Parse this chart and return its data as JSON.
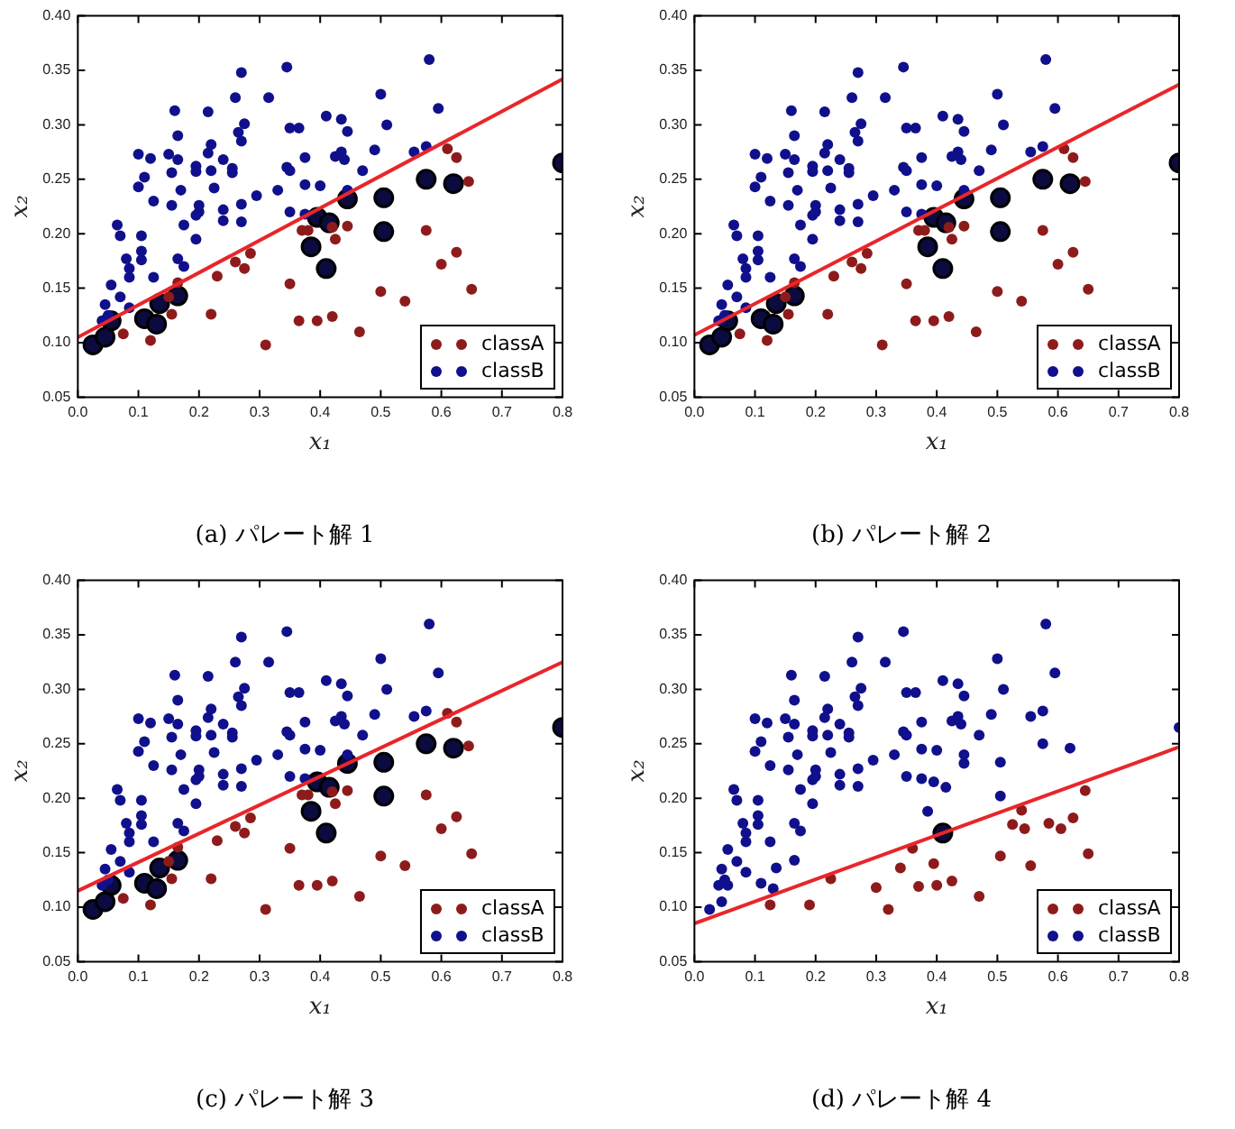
{
  "chart_data": [
    {
      "type": "scatter",
      "title": "(a) パレート解 1",
      "xlabel": "x₁",
      "ylabel": "x₂",
      "xlim": [
        0,
        0.8
      ],
      "ylim": [
        0.05,
        0.4
      ],
      "xticks": [
        {
          "value": 0,
          "label": "0.0"
        },
        {
          "value": 0.1,
          "label": "0.1"
        },
        {
          "value": 0.2,
          "label": "0.2"
        },
        {
          "value": 0.3,
          "label": "0.3"
        },
        {
          "value": 0.4,
          "label": "0.4"
        },
        {
          "value": 0.5,
          "label": "0.5"
        },
        {
          "value": 0.6,
          "label": "0.6"
        },
        {
          "value": 0.7,
          "label": "0.7"
        },
        {
          "value": 0.8,
          "label": "0.8"
        }
      ],
      "yticks": [
        {
          "value": 0.05,
          "label": "0.05"
        },
        {
          "value": 0.1,
          "label": "0.10"
        },
        {
          "value": 0.15,
          "label": "0.15"
        },
        {
          "value": 0.2,
          "label": "0.20"
        },
        {
          "value": 0.25,
          "label": "0.25"
        },
        {
          "value": 0.3,
          "label": "0.30"
        },
        {
          "value": 0.35,
          "label": "0.35"
        },
        {
          "value": 0.4,
          "label": "0.40"
        }
      ],
      "legend": "bottom right",
      "marker": "circle",
      "series": [
        {
          "name": "classA",
          "color": "#8e1b1b",
          "x": [
            0.075,
            0.12,
            0.15,
            0.155,
            0.165,
            0.22,
            0.23,
            0.26,
            0.275,
            0.285,
            0.31,
            0.35,
            0.365,
            0.37,
            0.38,
            0.395,
            0.42,
            0.42,
            0.425,
            0.445,
            0.465,
            0.5,
            0.54,
            0.575,
            0.6,
            0.61,
            0.625,
            0.625,
            0.645,
            0.65
          ],
          "values": [
            0.108,
            0.102,
            0.142,
            0.126,
            0.155,
            0.126,
            0.161,
            0.174,
            0.168,
            0.182,
            0.098,
            0.154,
            0.12,
            0.203,
            0.203,
            0.12,
            0.206,
            0.124,
            0.195,
            0.207,
            0.11,
            0.147,
            0.138,
            0.203,
            0.172,
            0.278,
            0.27,
            0.183,
            0.248,
            0.149
          ]
        },
        {
          "name": "classB",
          "color": "#10108c",
          "x": [
            0.04,
            0.045,
            0.05,
            0.055,
            0.065,
            0.07,
            0.07,
            0.08,
            0.085,
            0.085,
            0.085,
            0.1,
            0.1,
            0.105,
            0.105,
            0.105,
            0.11,
            0.12,
            0.125,
            0.125,
            0.15,
            0.155,
            0.155,
            0.16,
            0.165,
            0.165,
            0.165,
            0.17,
            0.175,
            0.175,
            0.195,
            0.195,
            0.195,
            0.195,
            0.2,
            0.2,
            0.215,
            0.215,
            0.22,
            0.22,
            0.225,
            0.24,
            0.24,
            0.24,
            0.255,
            0.255,
            0.26,
            0.265,
            0.27,
            0.27,
            0.27,
            0.275,
            0.27,
            0.295,
            0.315,
            0.33,
            0.345,
            0.35,
            0.345,
            0.35,
            0.35,
            0.365,
            0.375,
            0.375,
            0.375,
            0.4,
            0.41,
            0.425,
            0.435,
            0.435,
            0.44,
            0.445,
            0.445,
            0.47,
            0.49,
            0.5,
            0.51,
            0.555,
            0.575,
            0.58,
            0.595
          ],
          "values": [
            0.12,
            0.135,
            0.125,
            0.153,
            0.208,
            0.198,
            0.142,
            0.177,
            0.168,
            0.16,
            0.132,
            0.273,
            0.243,
            0.198,
            0.184,
            0.176,
            0.252,
            0.269,
            0.23,
            0.16,
            0.273,
            0.256,
            0.226,
            0.313,
            0.29,
            0.268,
            0.177,
            0.24,
            0.17,
            0.208,
            0.262,
            0.257,
            0.217,
            0.195,
            0.226,
            0.22,
            0.312,
            0.274,
            0.282,
            0.258,
            0.242,
            0.268,
            0.222,
            0.212,
            0.26,
            0.256,
            0.325,
            0.293,
            0.285,
            0.227,
            0.348,
            0.301,
            0.211,
            0.235,
            0.325,
            0.24,
            0.261,
            0.258,
            0.353,
            0.297,
            0.22,
            0.297,
            0.27,
            0.245,
            0.218,
            0.244,
            0.308,
            0.271,
            0.305,
            0.275,
            0.268,
            0.294,
            0.24,
            0.258,
            0.277,
            0.328,
            0.3,
            0.275,
            0.28,
            0.36,
            0.315
          ]
        },
        {
          "color": "#0b0b40",
          "x": [
            0.025,
            0.045,
            0.055,
            0.11,
            0.13,
            0.135,
            0.165,
            0.385,
            0.395,
            0.41,
            0.415,
            0.445,
            0.505,
            0.505,
            0.575,
            0.62,
            0.8
          ],
          "values": [
            0.098,
            0.105,
            0.12,
            0.122,
            0.117,
            0.136,
            0.143,
            0.188,
            0.215,
            0.168,
            0.21,
            0.232,
            0.233,
            0.202,
            0.25,
            0.246,
            0.265
          ]
        },
        {
          "type": "line",
          "marker": "none",
          "color": "#e8262a",
          "x": [
            0,
            0.8
          ],
          "values": [
            0.105,
            0.342
          ]
        }
      ]
    },
    {
      "type": "scatter",
      "title": "(b) パレート解 2",
      "xlabel": "x₁",
      "ylabel": "x₂",
      "xlim": [
        0,
        0.8
      ],
      "ylim": [
        0.05,
        0.4
      ],
      "xticks": [
        {
          "value": 0,
          "label": "0.0"
        },
        {
          "value": 0.1,
          "label": "0.1"
        },
        {
          "value": 0.2,
          "label": "0.2"
        },
        {
          "value": 0.3,
          "label": "0.3"
        },
        {
          "value": 0.4,
          "label": "0.4"
        },
        {
          "value": 0.5,
          "label": "0.5"
        },
        {
          "value": 0.6,
          "label": "0.6"
        },
        {
          "value": 0.7,
          "label": "0.7"
        },
        {
          "value": 0.8,
          "label": "0.8"
        }
      ],
      "yticks": [
        {
          "value": 0.05,
          "label": "0.05"
        },
        {
          "value": 0.1,
          "label": "0.10"
        },
        {
          "value": 0.15,
          "label": "0.15"
        },
        {
          "value": 0.2,
          "label": "0.20"
        },
        {
          "value": 0.25,
          "label": "0.25"
        },
        {
          "value": 0.3,
          "label": "0.30"
        },
        {
          "value": 0.35,
          "label": "0.35"
        },
        {
          "value": 0.4,
          "label": "0.40"
        }
      ],
      "legend": "bottom right",
      "marker": "circle",
      "series": [
        {
          "name": "classA",
          "color": "#8e1b1b",
          "x": [
            0.075,
            0.12,
            0.15,
            0.155,
            0.165,
            0.22,
            0.23,
            0.26,
            0.275,
            0.285,
            0.31,
            0.35,
            0.365,
            0.37,
            0.38,
            0.395,
            0.42,
            0.42,
            0.425,
            0.445,
            0.465,
            0.5,
            0.54,
            0.575,
            0.6,
            0.61,
            0.625,
            0.625,
            0.645,
            0.65
          ],
          "values": [
            0.108,
            0.102,
            0.142,
            0.126,
            0.155,
            0.126,
            0.161,
            0.174,
            0.168,
            0.182,
            0.098,
            0.154,
            0.12,
            0.203,
            0.203,
            0.12,
            0.206,
            0.124,
            0.195,
            0.207,
            0.11,
            0.147,
            0.138,
            0.203,
            0.172,
            0.278,
            0.27,
            0.183,
            0.248,
            0.149
          ]
        },
        {
          "name": "classB",
          "color": "#10108c",
          "x": [
            0.04,
            0.045,
            0.05,
            0.055,
            0.065,
            0.07,
            0.07,
            0.08,
            0.085,
            0.085,
            0.085,
            0.1,
            0.1,
            0.105,
            0.105,
            0.105,
            0.11,
            0.12,
            0.125,
            0.125,
            0.15,
            0.155,
            0.155,
            0.16,
            0.165,
            0.165,
            0.165,
            0.17,
            0.175,
            0.175,
            0.195,
            0.195,
            0.195,
            0.195,
            0.2,
            0.2,
            0.215,
            0.215,
            0.22,
            0.22,
            0.225,
            0.24,
            0.24,
            0.24,
            0.255,
            0.255,
            0.26,
            0.265,
            0.27,
            0.27,
            0.27,
            0.275,
            0.27,
            0.295,
            0.315,
            0.33,
            0.345,
            0.35,
            0.345,
            0.35,
            0.35,
            0.365,
            0.375,
            0.375,
            0.375,
            0.4,
            0.41,
            0.425,
            0.435,
            0.435,
            0.44,
            0.445,
            0.445,
            0.47,
            0.49,
            0.5,
            0.51,
            0.555,
            0.575,
            0.58,
            0.595
          ],
          "values": [
            0.12,
            0.135,
            0.125,
            0.153,
            0.208,
            0.198,
            0.142,
            0.177,
            0.168,
            0.16,
            0.132,
            0.273,
            0.243,
            0.198,
            0.184,
            0.176,
            0.252,
            0.269,
            0.23,
            0.16,
            0.273,
            0.256,
            0.226,
            0.313,
            0.29,
            0.268,
            0.177,
            0.24,
            0.17,
            0.208,
            0.262,
            0.257,
            0.217,
            0.195,
            0.226,
            0.22,
            0.312,
            0.274,
            0.282,
            0.258,
            0.242,
            0.268,
            0.222,
            0.212,
            0.26,
            0.256,
            0.325,
            0.293,
            0.285,
            0.227,
            0.348,
            0.301,
            0.211,
            0.235,
            0.325,
            0.24,
            0.261,
            0.258,
            0.353,
            0.297,
            0.22,
            0.297,
            0.27,
            0.245,
            0.218,
            0.244,
            0.308,
            0.271,
            0.305,
            0.275,
            0.268,
            0.294,
            0.24,
            0.258,
            0.277,
            0.328,
            0.3,
            0.275,
            0.28,
            0.36,
            0.315
          ]
        },
        {
          "color": "#0b0b40",
          "x": [
            0.025,
            0.045,
            0.055,
            0.11,
            0.13,
            0.135,
            0.165,
            0.385,
            0.395,
            0.41,
            0.415,
            0.445,
            0.505,
            0.505,
            0.575,
            0.62,
            0.8
          ],
          "values": [
            0.098,
            0.105,
            0.12,
            0.122,
            0.117,
            0.136,
            0.143,
            0.188,
            0.215,
            0.168,
            0.21,
            0.232,
            0.233,
            0.202,
            0.25,
            0.246,
            0.265
          ]
        },
        {
          "type": "line",
          "marker": "none",
          "color": "#e8262a",
          "x": [
            0,
            0.8
          ],
          "values": [
            0.107,
            0.337
          ]
        }
      ]
    },
    {
      "type": "scatter",
      "title": "(c) パレート解 3",
      "xlabel": "x₁",
      "ylabel": "x₂",
      "xlim": [
        0,
        0.8
      ],
      "ylim": [
        0.05,
        0.4
      ],
      "xticks": [
        {
          "value": 0,
          "label": "0.0"
        },
        {
          "value": 0.1,
          "label": "0.1"
        },
        {
          "value": 0.2,
          "label": "0.2"
        },
        {
          "value": 0.3,
          "label": "0.3"
        },
        {
          "value": 0.4,
          "label": "0.4"
        },
        {
          "value": 0.5,
          "label": "0.5"
        },
        {
          "value": 0.6,
          "label": "0.6"
        },
        {
          "value": 0.7,
          "label": "0.7"
        },
        {
          "value": 0.8,
          "label": "0.8"
        }
      ],
      "yticks": [
        {
          "value": 0.05,
          "label": "0.05"
        },
        {
          "value": 0.1,
          "label": "0.10"
        },
        {
          "value": 0.15,
          "label": "0.15"
        },
        {
          "value": 0.2,
          "label": "0.20"
        },
        {
          "value": 0.25,
          "label": "0.25"
        },
        {
          "value": 0.3,
          "label": "0.30"
        },
        {
          "value": 0.35,
          "label": "0.35"
        },
        {
          "value": 0.4,
          "label": "0.40"
        }
      ],
      "legend": "bottom right",
      "marker": "circle",
      "series": [
        {
          "name": "classA",
          "color": "#8e1b1b",
          "x": [
            0.075,
            0.12,
            0.15,
            0.155,
            0.165,
            0.22,
            0.23,
            0.26,
            0.275,
            0.285,
            0.31,
            0.35,
            0.365,
            0.37,
            0.38,
            0.395,
            0.42,
            0.42,
            0.425,
            0.445,
            0.465,
            0.5,
            0.54,
            0.575,
            0.6,
            0.61,
            0.625,
            0.625,
            0.645,
            0.65
          ],
          "values": [
            0.108,
            0.102,
            0.142,
            0.126,
            0.155,
            0.126,
            0.161,
            0.174,
            0.168,
            0.182,
            0.098,
            0.154,
            0.12,
            0.203,
            0.203,
            0.12,
            0.206,
            0.124,
            0.195,
            0.207,
            0.11,
            0.147,
            0.138,
            0.203,
            0.172,
            0.278,
            0.27,
            0.183,
            0.248,
            0.149
          ]
        },
        {
          "name": "classB",
          "color": "#10108c",
          "x": [
            0.04,
            0.045,
            0.05,
            0.055,
            0.065,
            0.07,
            0.07,
            0.08,
            0.085,
            0.085,
            0.085,
            0.1,
            0.1,
            0.105,
            0.105,
            0.105,
            0.11,
            0.12,
            0.125,
            0.125,
            0.15,
            0.155,
            0.155,
            0.16,
            0.165,
            0.165,
            0.165,
            0.17,
            0.175,
            0.175,
            0.195,
            0.195,
            0.195,
            0.195,
            0.2,
            0.2,
            0.215,
            0.215,
            0.22,
            0.22,
            0.225,
            0.24,
            0.24,
            0.24,
            0.255,
            0.255,
            0.26,
            0.265,
            0.27,
            0.27,
            0.27,
            0.275,
            0.27,
            0.295,
            0.315,
            0.33,
            0.345,
            0.35,
            0.345,
            0.35,
            0.35,
            0.365,
            0.375,
            0.375,
            0.375,
            0.4,
            0.41,
            0.425,
            0.435,
            0.435,
            0.44,
            0.445,
            0.445,
            0.47,
            0.49,
            0.5,
            0.51,
            0.555,
            0.575,
            0.58,
            0.595
          ],
          "values": [
            0.12,
            0.135,
            0.125,
            0.153,
            0.208,
            0.198,
            0.142,
            0.177,
            0.168,
            0.16,
            0.132,
            0.273,
            0.243,
            0.198,
            0.184,
            0.176,
            0.252,
            0.269,
            0.23,
            0.16,
            0.273,
            0.256,
            0.226,
            0.313,
            0.29,
            0.268,
            0.177,
            0.24,
            0.17,
            0.208,
            0.262,
            0.257,
            0.217,
            0.195,
            0.226,
            0.22,
            0.312,
            0.274,
            0.282,
            0.258,
            0.242,
            0.268,
            0.222,
            0.212,
            0.26,
            0.256,
            0.325,
            0.293,
            0.285,
            0.227,
            0.348,
            0.301,
            0.211,
            0.235,
            0.325,
            0.24,
            0.261,
            0.258,
            0.353,
            0.297,
            0.22,
            0.297,
            0.27,
            0.245,
            0.218,
            0.244,
            0.308,
            0.271,
            0.305,
            0.275,
            0.268,
            0.294,
            0.24,
            0.258,
            0.277,
            0.328,
            0.3,
            0.275,
            0.28,
            0.36,
            0.315
          ]
        },
        {
          "color": "#0b0b40",
          "x": [
            0.025,
            0.045,
            0.055,
            0.11,
            0.13,
            0.135,
            0.165,
            0.385,
            0.395,
            0.41,
            0.415,
            0.445,
            0.505,
            0.505,
            0.575,
            0.62,
            0.8
          ],
          "values": [
            0.098,
            0.105,
            0.12,
            0.122,
            0.117,
            0.136,
            0.143,
            0.188,
            0.215,
            0.168,
            0.21,
            0.232,
            0.233,
            0.202,
            0.25,
            0.246,
            0.265
          ]
        },
        {
          "type": "line",
          "marker": "none",
          "color": "#e8262a",
          "x": [
            0,
            0.8
          ],
          "values": [
            0.115,
            0.325
          ]
        }
      ]
    },
    {
      "type": "scatter",
      "title": "(d) パレート解 4",
      "xlabel": "x₁",
      "ylabel": "x₂",
      "xlim": [
        0,
        0.8
      ],
      "ylim": [
        0.05,
        0.4
      ],
      "xticks": [
        {
          "value": 0,
          "label": "0.0"
        },
        {
          "value": 0.1,
          "label": "0.1"
        },
        {
          "value": 0.2,
          "label": "0.2"
        },
        {
          "value": 0.3,
          "label": "0.3"
        },
        {
          "value": 0.4,
          "label": "0.4"
        },
        {
          "value": 0.5,
          "label": "0.5"
        },
        {
          "value": 0.6,
          "label": "0.6"
        },
        {
          "value": 0.7,
          "label": "0.7"
        },
        {
          "value": 0.8,
          "label": "0.8"
        }
      ],
      "yticks": [
        {
          "value": 0.05,
          "label": "0.05"
        },
        {
          "value": 0.1,
          "label": "0.10"
        },
        {
          "value": 0.15,
          "label": "0.15"
        },
        {
          "value": 0.2,
          "label": "0.20"
        },
        {
          "value": 0.25,
          "label": "0.25"
        },
        {
          "value": 0.3,
          "label": "0.30"
        },
        {
          "value": 0.35,
          "label": "0.35"
        },
        {
          "value": 0.4,
          "label": "0.40"
        }
      ],
      "legend": "bottom right",
      "marker": "circle",
      "series": [
        {
          "name": "classA",
          "color": "#8e1b1b",
          "x": [
            0.125,
            0.19,
            0.225,
            0.3,
            0.32,
            0.34,
            0.36,
            0.37,
            0.395,
            0.4,
            0.425,
            0.47,
            0.505,
            0.525,
            0.54,
            0.545,
            0.555,
            0.585,
            0.605,
            0.625,
            0.645,
            0.65
          ],
          "values": [
            0.102,
            0.102,
            0.126,
            0.118,
            0.098,
            0.136,
            0.154,
            0.119,
            0.14,
            0.12,
            0.124,
            0.11,
            0.147,
            0.176,
            0.189,
            0.172,
            0.138,
            0.177,
            0.172,
            0.182,
            0.207,
            0.149
          ]
        },
        {
          "name": "classB",
          "color": "#10108c",
          "x": [
            0.025,
            0.045,
            0.055,
            0.11,
            0.13,
            0.135,
            0.165,
            0.385,
            0.395,
            0.415,
            0.445,
            0.505,
            0.505,
            0.575,
            0.62,
            0.8,
            0.04,
            0.045,
            0.05,
            0.055,
            0.065,
            0.07,
            0.07,
            0.08,
            0.085,
            0.085,
            0.085,
            0.1,
            0.1,
            0.105,
            0.105,
            0.105,
            0.11,
            0.12,
            0.125,
            0.125,
            0.15,
            0.155,
            0.155,
            0.16,
            0.165,
            0.165,
            0.165,
            0.17,
            0.175,
            0.175,
            0.195,
            0.195,
            0.195,
            0.195,
            0.2,
            0.2,
            0.215,
            0.215,
            0.22,
            0.22,
            0.225,
            0.24,
            0.24,
            0.24,
            0.255,
            0.255,
            0.26,
            0.265,
            0.27,
            0.27,
            0.27,
            0.275,
            0.27,
            0.295,
            0.315,
            0.33,
            0.345,
            0.35,
            0.345,
            0.35,
            0.35,
            0.365,
            0.375,
            0.375,
            0.375,
            0.4,
            0.41,
            0.425,
            0.435,
            0.435,
            0.44,
            0.445,
            0.445,
            0.47,
            0.49,
            0.5,
            0.51,
            0.555,
            0.575,
            0.58,
            0.595
          ],
          "values": [
            0.098,
            0.105,
            0.12,
            0.122,
            0.117,
            0.136,
            0.143,
            0.188,
            0.215,
            0.21,
            0.232,
            0.233,
            0.202,
            0.25,
            0.246,
            0.265,
            0.12,
            0.135,
            0.125,
            0.153,
            0.208,
            0.198,
            0.142,
            0.177,
            0.168,
            0.16,
            0.132,
            0.273,
            0.243,
            0.198,
            0.184,
            0.176,
            0.252,
            0.269,
            0.23,
            0.16,
            0.273,
            0.256,
            0.226,
            0.313,
            0.29,
            0.268,
            0.177,
            0.24,
            0.17,
            0.208,
            0.262,
            0.257,
            0.217,
            0.195,
            0.226,
            0.22,
            0.312,
            0.274,
            0.282,
            0.258,
            0.242,
            0.268,
            0.222,
            0.212,
            0.26,
            0.256,
            0.325,
            0.293,
            0.285,
            0.227,
            0.348,
            0.301,
            0.211,
            0.235,
            0.325,
            0.24,
            0.261,
            0.258,
            0.353,
            0.297,
            0.22,
            0.297,
            0.27,
            0.245,
            0.218,
            0.244,
            0.308,
            0.271,
            0.305,
            0.275,
            0.268,
            0.294,
            0.24,
            0.258,
            0.277,
            0.328,
            0.3,
            0.275,
            0.28,
            0.36,
            0.315
          ]
        },
        {
          "color": "#0b0b40",
          "x": [
            0.41
          ],
          "values": [
            0.168
          ]
        },
        {
          "type": "line",
          "marker": "none",
          "color": "#e8262a",
          "x": [
            0,
            0.8
          ],
          "values": [
            0.085,
            0.247
          ]
        }
      ]
    }
  ]
}
